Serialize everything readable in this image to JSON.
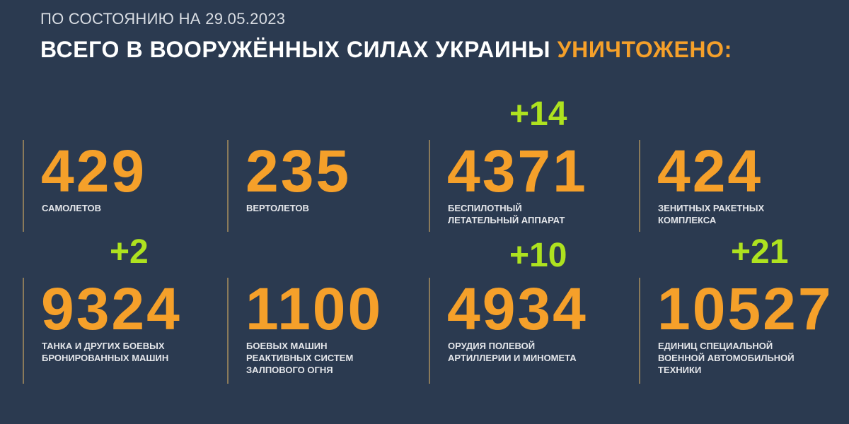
{
  "header": {
    "subtitle": "ПО СОСТОЯНИЮ НА 29.05.2023",
    "title_main": "ВСЕГО В ВООРУЖЁННЫХ СИЛАХ УКРАИНЫ",
    "title_accent": "УНИЧТОЖЕНО:"
  },
  "colors": {
    "background": "#2b3a50",
    "accent_orange": "#f5a02a",
    "delta_green": "#aee21f"
  },
  "stats": [
    {
      "value": "429",
      "label": "САМОЛЕТОВ",
      "delta": ""
    },
    {
      "value": "235",
      "label": "ВЕРТОЛЕТОВ",
      "delta": ""
    },
    {
      "value": "4371",
      "label": "БЕСПИЛОТНЫЙ\nЛЕТАТЕЛЬНЫЙ АППАРАТ",
      "delta": "+14"
    },
    {
      "value": "424",
      "label": "ЗЕНИТНЫХ РАКЕТНЫХ\nКОМПЛЕКСА",
      "delta": ""
    },
    {
      "value": "9324",
      "label": "ТАНКА И ДРУГИХ БОЕВЫХ\nБРОНИРОВАННЫХ МАШИН",
      "delta": "+2"
    },
    {
      "value": "1100",
      "label": "БОЕВЫХ МАШИН\nРЕАКТИВНЫХ СИСТЕМ\nЗАЛПОВОГО ОГНЯ",
      "delta": ""
    },
    {
      "value": "4934",
      "label": "ОРУДИЯ ПОЛЕВОЙ\nАРТИЛЛЕРИИ И МИНОМЕТА",
      "delta": "+10"
    },
    {
      "value": "10527",
      "label": "ЕДИНИЦ СПЕЦИАЛЬНОЙ\nВОЕННОЙ АВТОМОБИЛЬНОЙ\nТЕХНИКИ",
      "delta": "+21"
    }
  ]
}
